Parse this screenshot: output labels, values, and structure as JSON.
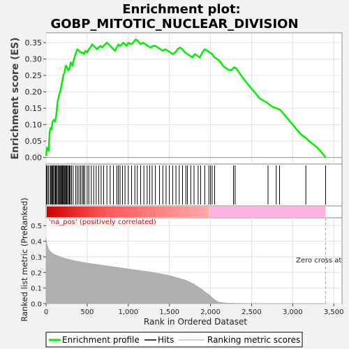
{
  "title_line1": "Enrichment plot:",
  "title_line2": "GOBP_MITOTIC_NUCLEAR_DIVISION",
  "chart_data": [
    {
      "type": "line",
      "panel": "enrichment",
      "ylabel": "Enrichment score (ES)",
      "ylim": [
        -0.02,
        0.38
      ],
      "yticks": [
        0.0,
        0.05,
        0.1,
        0.15,
        0.2,
        0.25,
        0.3,
        0.35
      ],
      "ytick_labels": [
        "0.00",
        "0.05",
        "0.10",
        "0.15",
        "0.20",
        "0.25",
        "0.30",
        "0.35"
      ],
      "xlim": [
        0,
        3600
      ],
      "grid": true,
      "color": "#00ee00",
      "series": [
        {
          "name": "Enrichment profile",
          "x": [
            0,
            10,
            20,
            30,
            45,
            55,
            65,
            80,
            95,
            110,
            125,
            140,
            160,
            180,
            195,
            210,
            225,
            240,
            255,
            270,
            285,
            300,
            320,
            340,
            360,
            380,
            400,
            420,
            440,
            460,
            480,
            500,
            520,
            540,
            560,
            580,
            600,
            620,
            640,
            660,
            680,
            700,
            720,
            740,
            760,
            780,
            800,
            820,
            840,
            860,
            880,
            900,
            920,
            940,
            960,
            980,
            1000,
            1030,
            1060,
            1090,
            1120,
            1150,
            1180,
            1210,
            1240,
            1270,
            1300,
            1330,
            1360,
            1390,
            1420,
            1450,
            1480,
            1510,
            1540,
            1570,
            1600,
            1630,
            1660,
            1690,
            1720,
            1750,
            1780,
            1810,
            1840,
            1870,
            1900,
            1930,
            1960,
            1990,
            2020,
            2050,
            2080,
            2110,
            2150,
            2200,
            2250,
            2290,
            2320,
            2400,
            2500,
            2600,
            2700,
            2750,
            2800,
            2850,
            3000,
            3100,
            3160,
            3200,
            3300,
            3370,
            3400
          ],
          "y": [
            0.005,
            0.03,
            0.025,
            0.02,
            0.08,
            0.09,
            0.085,
            0.11,
            0.115,
            0.11,
            0.13,
            0.17,
            0.19,
            0.21,
            0.23,
            0.25,
            0.26,
            0.28,
            0.275,
            0.265,
            0.27,
            0.29,
            0.28,
            0.3,
            0.315,
            0.33,
            0.325,
            0.32,
            0.32,
            0.315,
            0.325,
            0.32,
            0.33,
            0.335,
            0.345,
            0.34,
            0.335,
            0.33,
            0.335,
            0.34,
            0.335,
            0.34,
            0.345,
            0.35,
            0.345,
            0.34,
            0.335,
            0.33,
            0.325,
            0.335,
            0.345,
            0.34,
            0.345,
            0.35,
            0.345,
            0.34,
            0.35,
            0.345,
            0.35,
            0.36,
            0.355,
            0.345,
            0.35,
            0.345,
            0.34,
            0.335,
            0.34,
            0.34,
            0.335,
            0.33,
            0.325,
            0.33,
            0.325,
            0.32,
            0.315,
            0.32,
            0.33,
            0.335,
            0.33,
            0.32,
            0.315,
            0.31,
            0.305,
            0.315,
            0.31,
            0.305,
            0.32,
            0.33,
            0.325,
            0.32,
            0.315,
            0.305,
            0.3,
            0.295,
            0.28,
            0.27,
            0.265,
            0.275,
            0.27,
            0.24,
            0.21,
            0.18,
            0.165,
            0.155,
            0.15,
            0.145,
            0.1,
            0.07,
            0.06,
            0.05,
            0.03,
            0.01,
            0.0
          ]
        }
      ]
    },
    {
      "type": "hits",
      "panel": "hits",
      "label": "Hits",
      "x": [
        5,
        15,
        30,
        50,
        60,
        70,
        80,
        90,
        105,
        115,
        125,
        135,
        150,
        160,
        170,
        180,
        190,
        200,
        210,
        220,
        230,
        240,
        250,
        260,
        275,
        285,
        295,
        310,
        330,
        360,
        380,
        400,
        420,
        440,
        455,
        470,
        500,
        520,
        550,
        580,
        610,
        640,
        670,
        700,
        740,
        780,
        820,
        860,
        880,
        900,
        930,
        960,
        1000,
        1040,
        1080,
        1110,
        1150,
        1190,
        1230,
        1260,
        1290,
        1330,
        1380,
        1420,
        1460,
        1500,
        1540,
        1580,
        1620,
        1660,
        1700,
        1720,
        1760,
        1800,
        1850,
        1880,
        1930,
        1980,
        2000,
        2020,
        2050,
        2280,
        2300,
        2700,
        2800,
        2840,
        3160,
        3400
      ]
    },
    {
      "type": "heatmap",
      "panel": "rank-gradient",
      "label_pos": "'na_pos' (positively correlated)",
      "positive_end": 1980,
      "colors": [
        "#cc0000",
        "#ff5555",
        "#ffaaaa",
        "#ffb3de"
      ]
    },
    {
      "type": "area",
      "panel": "metric",
      "ylabel": "Ranked list metric (PreRanked)",
      "xlabel": "Rank in Ordered Dataset",
      "ylim": [
        0,
        0.55
      ],
      "yticks": [
        0.0,
        0.1,
        0.2,
        0.3,
        0.4,
        0.5
      ],
      "ytick_labels": [
        "0.0",
        "0.1",
        "0.2",
        "0.3",
        "0.4",
        "0.5"
      ],
      "xlim": [
        0,
        3600
      ],
      "xticks": [
        0,
        500,
        1000,
        1500,
        2000,
        2500,
        3000,
        3500
      ],
      "xtick_labels": [
        "0",
        "500",
        "1,000",
        "1,500",
        "2,000",
        "2,500",
        "3,000",
        "3,500"
      ],
      "zero_cross_label": "Zero cross at",
      "zero_cross_x": 3400,
      "color": "#b0b0b0",
      "series": [
        {
          "name": "Ranking metric scores",
          "x": [
            0,
            10,
            30,
            60,
            100,
            150,
            200,
            300,
            400,
            500,
            700,
            900,
            1100,
            1300,
            1500,
            1600,
            1700,
            1800,
            1900,
            1950,
            2000,
            2050,
            2100,
            2200,
            2500,
            3000,
            3400
          ],
          "y": [
            0.42,
            0.38,
            0.35,
            0.33,
            0.315,
            0.305,
            0.295,
            0.28,
            0.27,
            0.26,
            0.245,
            0.23,
            0.215,
            0.2,
            0.18,
            0.165,
            0.15,
            0.125,
            0.09,
            0.07,
            0.05,
            0.025,
            0.01,
            0.003,
            0.001,
            0.0,
            0.0
          ]
        }
      ]
    }
  ],
  "legend": {
    "items": [
      {
        "label": "Enrichment profile",
        "color": "#00ee00"
      },
      {
        "label": "Hits",
        "color": "#000000"
      },
      {
        "label": "Ranking metric scores",
        "color": "#c0c0c0"
      }
    ]
  }
}
